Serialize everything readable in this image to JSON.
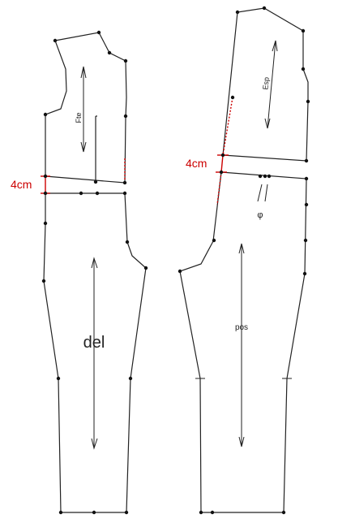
{
  "labels": {
    "front_bodice": "Fte",
    "back_bodice": "Esp",
    "front_pants": "del",
    "back_pants": "pos",
    "phi": "φ",
    "measure_left": "4cm",
    "measure_right": "4cm"
  },
  "colors": {
    "lines": "#222222",
    "measure": "#cc0000"
  }
}
